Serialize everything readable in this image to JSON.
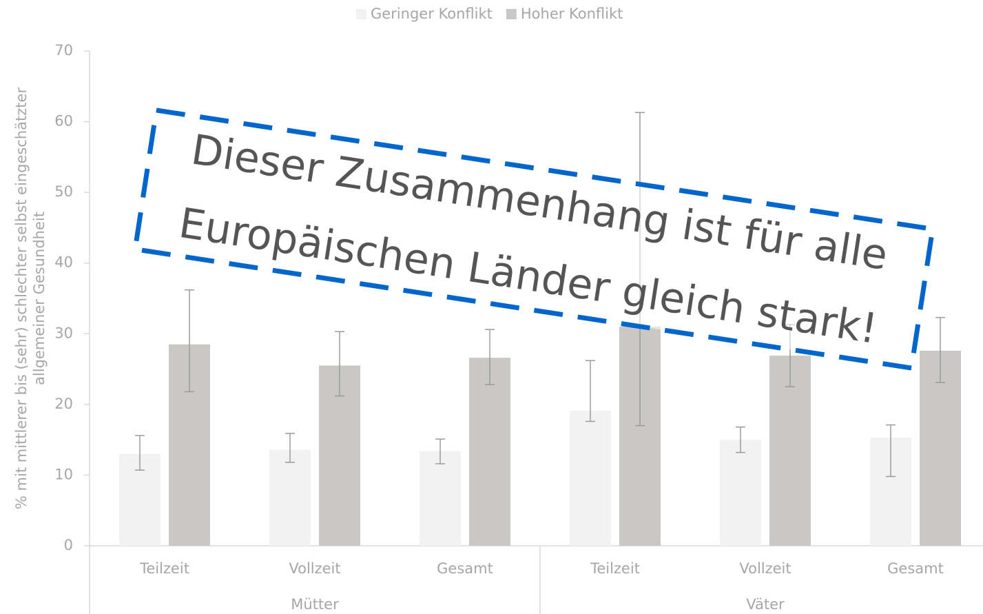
{
  "chart_data": {
    "type": "bar",
    "y_label": [
      "% mit mittlerer bis (sehr) schlechter selbst eingeschätzter",
      "allgemeiner Gesundheit"
    ],
    "categories": [
      "Teilzeit",
      "Vollzeit",
      "Gesamt",
      "Teilzeit",
      "Vollzeit",
      "Gesamt"
    ],
    "groups": [
      {
        "label": "Mütter",
        "size": 3
      },
      {
        "label": "Väter",
        "size": 3
      }
    ],
    "series": [
      {
        "name": "Geringer Konflikt",
        "color": "#f2f2f2",
        "values": [
          13.0,
          13.6,
          13.4,
          19.1,
          15.0,
          15.3
        ],
        "lower": [
          10.7,
          11.8,
          11.6,
          17.6,
          13.2,
          9.8
        ],
        "upper": [
          15.6,
          15.9,
          15.1,
          26.2,
          16.8,
          17.1
        ]
      },
      {
        "name": "Hoher Konflikt",
        "color": "#c9c8c4",
        "values": [
          28.5,
          25.5,
          26.6,
          31.0,
          26.9,
          27.6
        ],
        "lower": [
          21.8,
          21.2,
          22.8,
          17.0,
          22.5,
          23.1
        ],
        "upper": [
          36.2,
          30.3,
          30.6,
          61.3,
          31.3,
          32.3
        ]
      }
    ],
    "ylim": [
      0,
      70
    ],
    "yticks": [
      0,
      10,
      20,
      30,
      40,
      50,
      60,
      70
    ],
    "legend": "top",
    "annotation": [
      "Dieser Zusammenhang ist für alle",
      "Europäischen Länder gleich stark!"
    ]
  }
}
